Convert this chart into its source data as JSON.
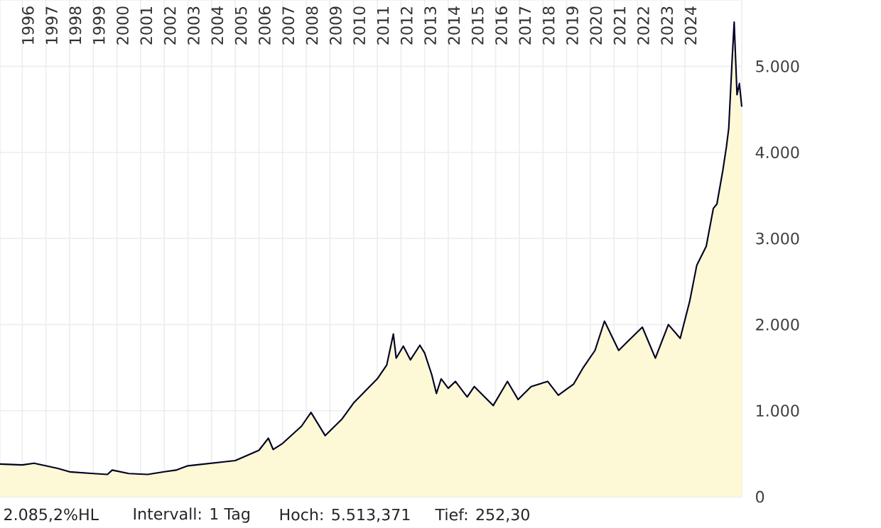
{
  "chart_data": {
    "type": "area",
    "x": [
      1995.06,
      1996.0,
      1996.5,
      1997.0,
      1997.5,
      1998.0,
      1999.0,
      1999.6,
      1999.8,
      2000.5,
      2001.3,
      2002.0,
      2002.5,
      2003.0,
      2004.0,
      2005.0,
      2006.0,
      2006.4,
      2006.6,
      2007.0,
      2007.8,
      2008.2,
      2008.8,
      2009.5,
      2010.0,
      2010.5,
      2011.0,
      2011.4,
      2011.68,
      2011.8,
      2012.1,
      2012.4,
      2012.8,
      2013.0,
      2013.3,
      2013.5,
      2013.7,
      2014.0,
      2014.3,
      2014.8,
      2015.1,
      2015.9,
      2016.5,
      2016.95,
      2017.5,
      2018.2,
      2018.65,
      2019.3,
      2019.7,
      2020.2,
      2020.6,
      2021.2,
      2021.6,
      2022.2,
      2022.75,
      2023.3,
      2023.8,
      2024.2,
      2024.5,
      2024.9,
      2025.2,
      2025.35,
      2025.6,
      2025.75,
      2025.85,
      2026.0,
      2026.08,
      2026.2,
      2026.3,
      2026.4
    ],
    "series": [
      {
        "color": "#fdf8d5",
        "values": [
          380,
          370,
          390,
          360,
          330,
          290,
          270,
          260,
          310,
          270,
          260,
          290,
          310,
          360,
          390,
          420,
          540,
          680,
          550,
          620,
          820,
          980,
          710,
          900,
          1090,
          1230,
          1370,
          1530,
          1890,
          1610,
          1750,
          1590,
          1760,
          1670,
          1420,
          1200,
          1370,
          1260,
          1340,
          1160,
          1280,
          1060,
          1340,
          1130,
          1280,
          1340,
          1180,
          1310,
          1500,
          1700,
          2040,
          1700,
          1810,
          1970,
          1610,
          2000,
          1840,
          2270,
          2690,
          2910,
          3350,
          3400,
          3790,
          4060,
          4280,
          5110,
          5513,
          4670,
          4800,
          4530
        ]
      }
    ],
    "xlim": [
      1995.06,
      2026.4
    ],
    "xticks": [
      1996,
      1997,
      1998,
      1999,
      2000,
      2001,
      2002,
      2003,
      2004,
      2005,
      2006,
      2007,
      2008,
      2009,
      2010,
      2011,
      2012,
      2013,
      2014,
      2015,
      2016,
      2017,
      2018,
      2019,
      2020,
      2021,
      2022,
      2023,
      2024
    ],
    "ylim": [
      0,
      5770
    ],
    "yticks": [
      0,
      {
        "value": 1000,
        "label": "1.000"
      },
      {
        "value": 2000,
        "label": "2.000"
      },
      {
        "value": 3000,
        "label": "3.000"
      },
      {
        "value": 4000,
        "label": "4.000"
      },
      {
        "value": 5000,
        "label": "5.000"
      }
    ],
    "grid": true,
    "annotations": [
      "2.085,2%HL",
      "Intervall: 1 Tag",
      "Hoch: 5.513,371",
      "Tief:   252,30"
    ]
  }
}
